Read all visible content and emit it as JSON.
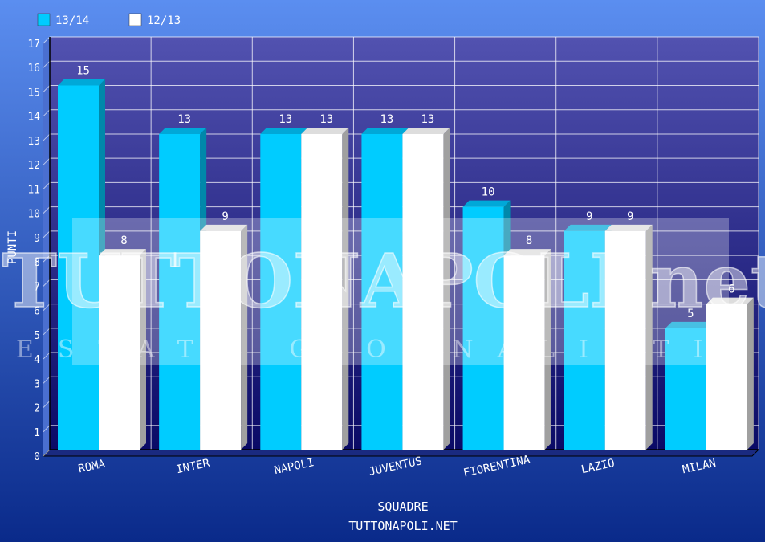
{
  "chart_data": {
    "type": "bar",
    "categories": [
      "ROMA",
      "INTER",
      "NAPOLI",
      "JUVENTUS",
      "FIORENTINA",
      "LAZIO",
      "MILAN"
    ],
    "series": [
      {
        "name": "13/14",
        "values": [
          15,
          13,
          13,
          13,
          10,
          9,
          5
        ],
        "color": "#00ccff"
      },
      {
        "name": "12/13",
        "values": [
          8,
          9,
          13,
          13,
          8,
          9,
          6
        ],
        "color": "#ffffff"
      }
    ],
    "ylabel": "PUNTI",
    "xlabel": "SQUADRE",
    "source": "TUTTONAPOLI.NET",
    "ylim": [
      0,
      17
    ],
    "yticks": [
      "0",
      "1",
      "2",
      "3",
      "4",
      "5",
      "6",
      "7",
      "8",
      "9",
      "10",
      "11",
      "12",
      "13",
      "14",
      "15",
      "16",
      "17"
    ],
    "grid": true,
    "legend": "top-left",
    "watermark": {
      "title": "TUTTONAPOLI.net",
      "subtitle": "TESTATA GIORNALISTICA"
    },
    "colors": {
      "bg_top": "#5b8ef0",
      "bg_bottom": "#0a2a8a",
      "plot_top": "#5252b0",
      "plot_bottom": "#0a0a66",
      "text": "#ffffff"
    }
  }
}
